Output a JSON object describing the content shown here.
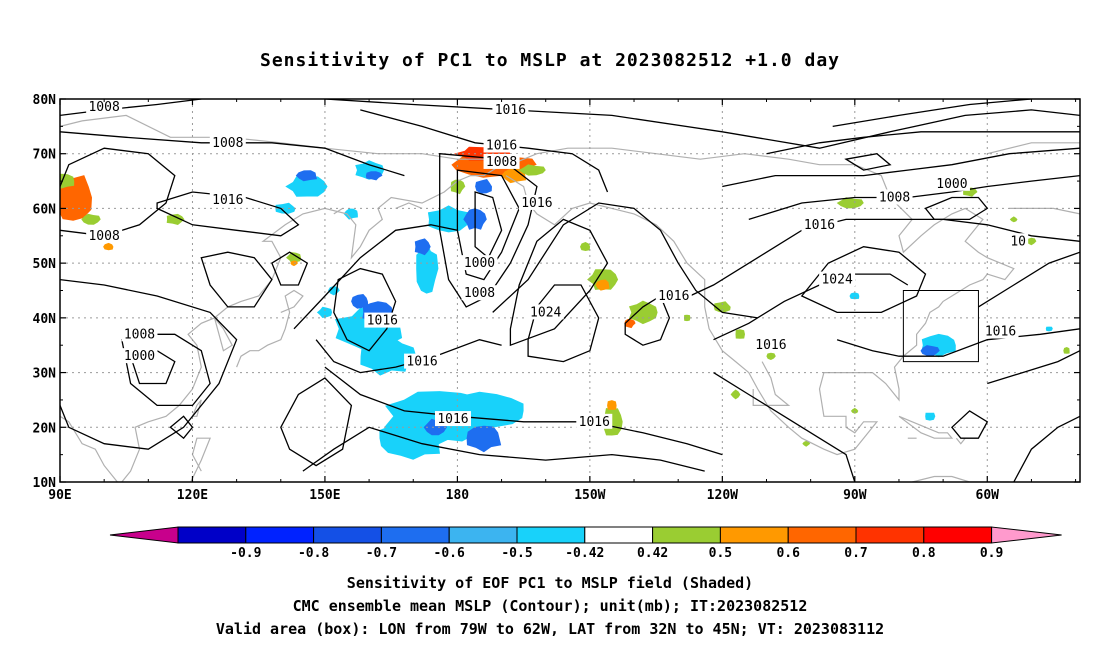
{
  "title": "Sensitivity of PC1 to MSLP at 2023082512 +1.0 day",
  "axes": {
    "lat_labels": [
      "80N",
      "70N",
      "60N",
      "50N",
      "40N",
      "30N",
      "20N",
      "10N"
    ],
    "lon_labels": [
      "90E",
      "120E",
      "150E",
      "180",
      "150W",
      "120W",
      "90W",
      "60W"
    ]
  },
  "contour_labels": [
    {
      "text": "1008",
      "lon": 100,
      "lat": 78.5
    },
    {
      "text": "1008",
      "lon": 128,
      "lat": 72
    },
    {
      "text": "1016",
      "lon": 192,
      "lat": 78
    },
    {
      "text": "1016",
      "lon": 190,
      "lat": 71.5
    },
    {
      "text": "1008",
      "lon": 190,
      "lat": 68.5
    },
    {
      "text": "1016",
      "lon": 128,
      "lat": 61.5
    },
    {
      "text": "1008",
      "lon": 100,
      "lat": 55
    },
    {
      "text": "1016",
      "lon": 198,
      "lat": 61
    },
    {
      "text": "1000",
      "lon": 185,
      "lat": 50
    },
    {
      "text": "1008",
      "lon": 185,
      "lat": 44.5
    },
    {
      "text": "1024",
      "lon": 200,
      "lat": 41
    },
    {
      "text": "1016",
      "lon": 229,
      "lat": 44
    },
    {
      "text": "1016",
      "lon": 163,
      "lat": 39.5
    },
    {
      "text": "1016",
      "lon": 172,
      "lat": 32
    },
    {
      "text": "1008",
      "lon": 108,
      "lat": 37
    },
    {
      "text": "1000",
      "lon": 108,
      "lat": 33
    },
    {
      "text": "1016",
      "lon": 179,
      "lat": 21.5
    },
    {
      "text": "1016",
      "lon": 211,
      "lat": 21
    },
    {
      "text": "1016",
      "lon": 251,
      "lat": 35
    },
    {
      "text": "1024",
      "lon": 266,
      "lat": 47
    },
    {
      "text": "1016",
      "lon": 262,
      "lat": 57
    },
    {
      "text": "1008",
      "lon": 279,
      "lat": 62
    },
    {
      "text": "1000",
      "lon": 292,
      "lat": 64.5
    },
    {
      "text": "1016",
      "lon": 303,
      "lat": 37.5
    },
    {
      "text": "10",
      "lon": 307,
      "lat": 54
    }
  ],
  "valid_box": {
    "lon_from": 281,
    "lon_to": 298,
    "lat_from": 32,
    "lat_to": 45
  },
  "colorbar": {
    "labels": [
      "-0.9",
      "-0.8",
      "-0.7",
      "-0.6",
      "-0.5",
      "-0.42",
      "0.42",
      "0.5",
      "0.6",
      "0.7",
      "0.8",
      "0.9"
    ],
    "colors": [
      "#c8008c",
      "#0000c8",
      "#0022ff",
      "#1450e6",
      "#1e6ef0",
      "#3cb4f0",
      "#18d2fa",
      "#ffffff",
      "#9acd32",
      "#ff9900",
      "#ff6600",
      "#ff3300",
      "#ff0000",
      "#ff9acd"
    ]
  },
  "captions": [
    "Sensitivity of EOF PC1 to MSLP field (Shaded)",
    "CMC ensemble mean MSLP (Contour); unit(mb); IT:2023082512",
    "Valid area (box): LON from 79W to 62W, LAT from 32N to 45N; VT: 2023083112"
  ]
}
